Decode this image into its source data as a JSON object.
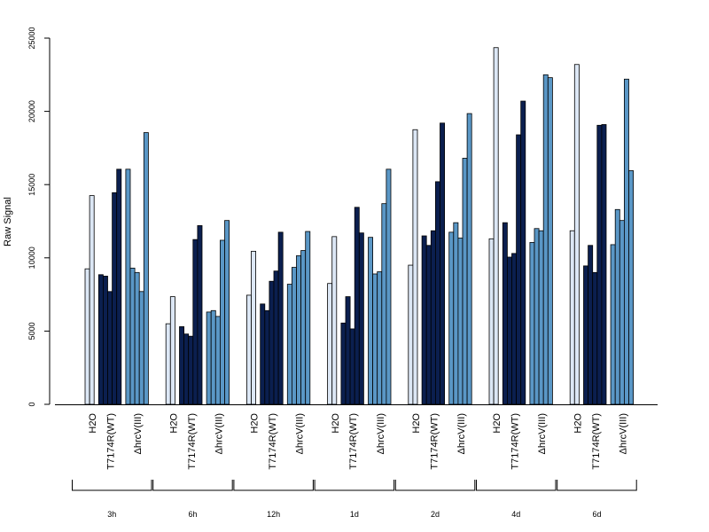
{
  "chart_data": {
    "type": "bar",
    "ylabel": "Raw Signal",
    "xlabel": "",
    "ylim": [
      0,
      25000
    ],
    "yticks": [
      0,
      5000,
      10000,
      15000,
      20000,
      25000
    ],
    "grid": false,
    "legend": "none",
    "groups": [
      {
        "time": "3h",
        "conditions": [
          {
            "label": "H2O",
            "color": "#dce7f5",
            "values": [
              9250,
              14250
            ]
          },
          {
            "label": "T7174R(WT)",
            "color": "#0b1f4f",
            "values": [
              8850,
              8750,
              7700,
              14450,
              16050
            ]
          },
          {
            "label": "ΔhrcV(III)",
            "color": "#5a97c6",
            "values": [
              16050,
              9300,
              9000,
              7700,
              18550
            ]
          }
        ]
      },
      {
        "time": "6h",
        "conditions": [
          {
            "label": "H2O",
            "color": "#dce7f5",
            "values": [
              5500,
              7350
            ]
          },
          {
            "label": "T7174R(WT)",
            "color": "#0b1f4f",
            "values": [
              5300,
              4800,
              4650,
              11250,
              12200
            ]
          },
          {
            "label": "ΔhrcV(III)",
            "color": "#5a97c6",
            "values": [
              6300,
              6400,
              6000,
              11200,
              12550
            ]
          }
        ]
      },
      {
        "time": "12h",
        "conditions": [
          {
            "label": "H2O",
            "color": "#dce7f5",
            "values": [
              7450,
              10450
            ]
          },
          {
            "label": "T7174R(WT)",
            "color": "#0b1f4f",
            "values": [
              6850,
              6400,
              8400,
              9100,
              11750
            ]
          },
          {
            "label": "ΔhrcV(III)",
            "color": "#5a97c6",
            "values": [
              8200,
              9350,
              10150,
              10500,
              11800
            ]
          }
        ]
      },
      {
        "time": "1d",
        "conditions": [
          {
            "label": "H2O",
            "color": "#dce7f5",
            "values": [
              8250,
              11450
            ]
          },
          {
            "label": "T7174R(WT)",
            "color": "#0b1f4f",
            "values": [
              5550,
              7350,
              5150,
              13450,
              11700
            ]
          },
          {
            "label": "ΔhrcV(III)",
            "color": "#5a97c6",
            "values": [
              11400,
              8900,
              9050,
              13700,
              16050
            ]
          }
        ]
      },
      {
        "time": "2d",
        "conditions": [
          {
            "label": "H2O",
            "color": "#dce7f5",
            "values": [
              9500,
              18750
            ]
          },
          {
            "label": "T7174R(WT)",
            "color": "#0b1f4f",
            "values": [
              11500,
              10850,
              11850,
              15200,
              19200
            ]
          },
          {
            "label": "ΔhrcV(III)",
            "color": "#5a97c6",
            "values": [
              11750,
              12400,
              11350,
              16800,
              19850
            ]
          }
        ]
      },
      {
        "time": "4d",
        "conditions": [
          {
            "label": "H2O",
            "color": "#dce7f5",
            "values": [
              11300,
              24350
            ]
          },
          {
            "label": "T7174R(WT)",
            "color": "#0b1f4f",
            "values": [
              12400,
              10050,
              10300,
              18400,
              20700
            ]
          },
          {
            "label": "ΔhrcV(III)",
            "color": "#5a97c6",
            "values": [
              11050,
              12000,
              11850,
              22500,
              22300
            ]
          }
        ]
      },
      {
        "time": "6d",
        "conditions": [
          {
            "label": "H2O",
            "color": "#dce7f5",
            "values": [
              11850,
              23200
            ]
          },
          {
            "label": "T7174R(WT)",
            "color": "#0b1f4f",
            "values": [
              9450,
              10850,
              9000,
              19050,
              19100
            ]
          },
          {
            "label": "ΔhrcV(III)",
            "color": "#5a97c6",
            "values": [
              10900,
              13300,
              12550,
              22200,
              15950
            ]
          }
        ]
      }
    ]
  }
}
